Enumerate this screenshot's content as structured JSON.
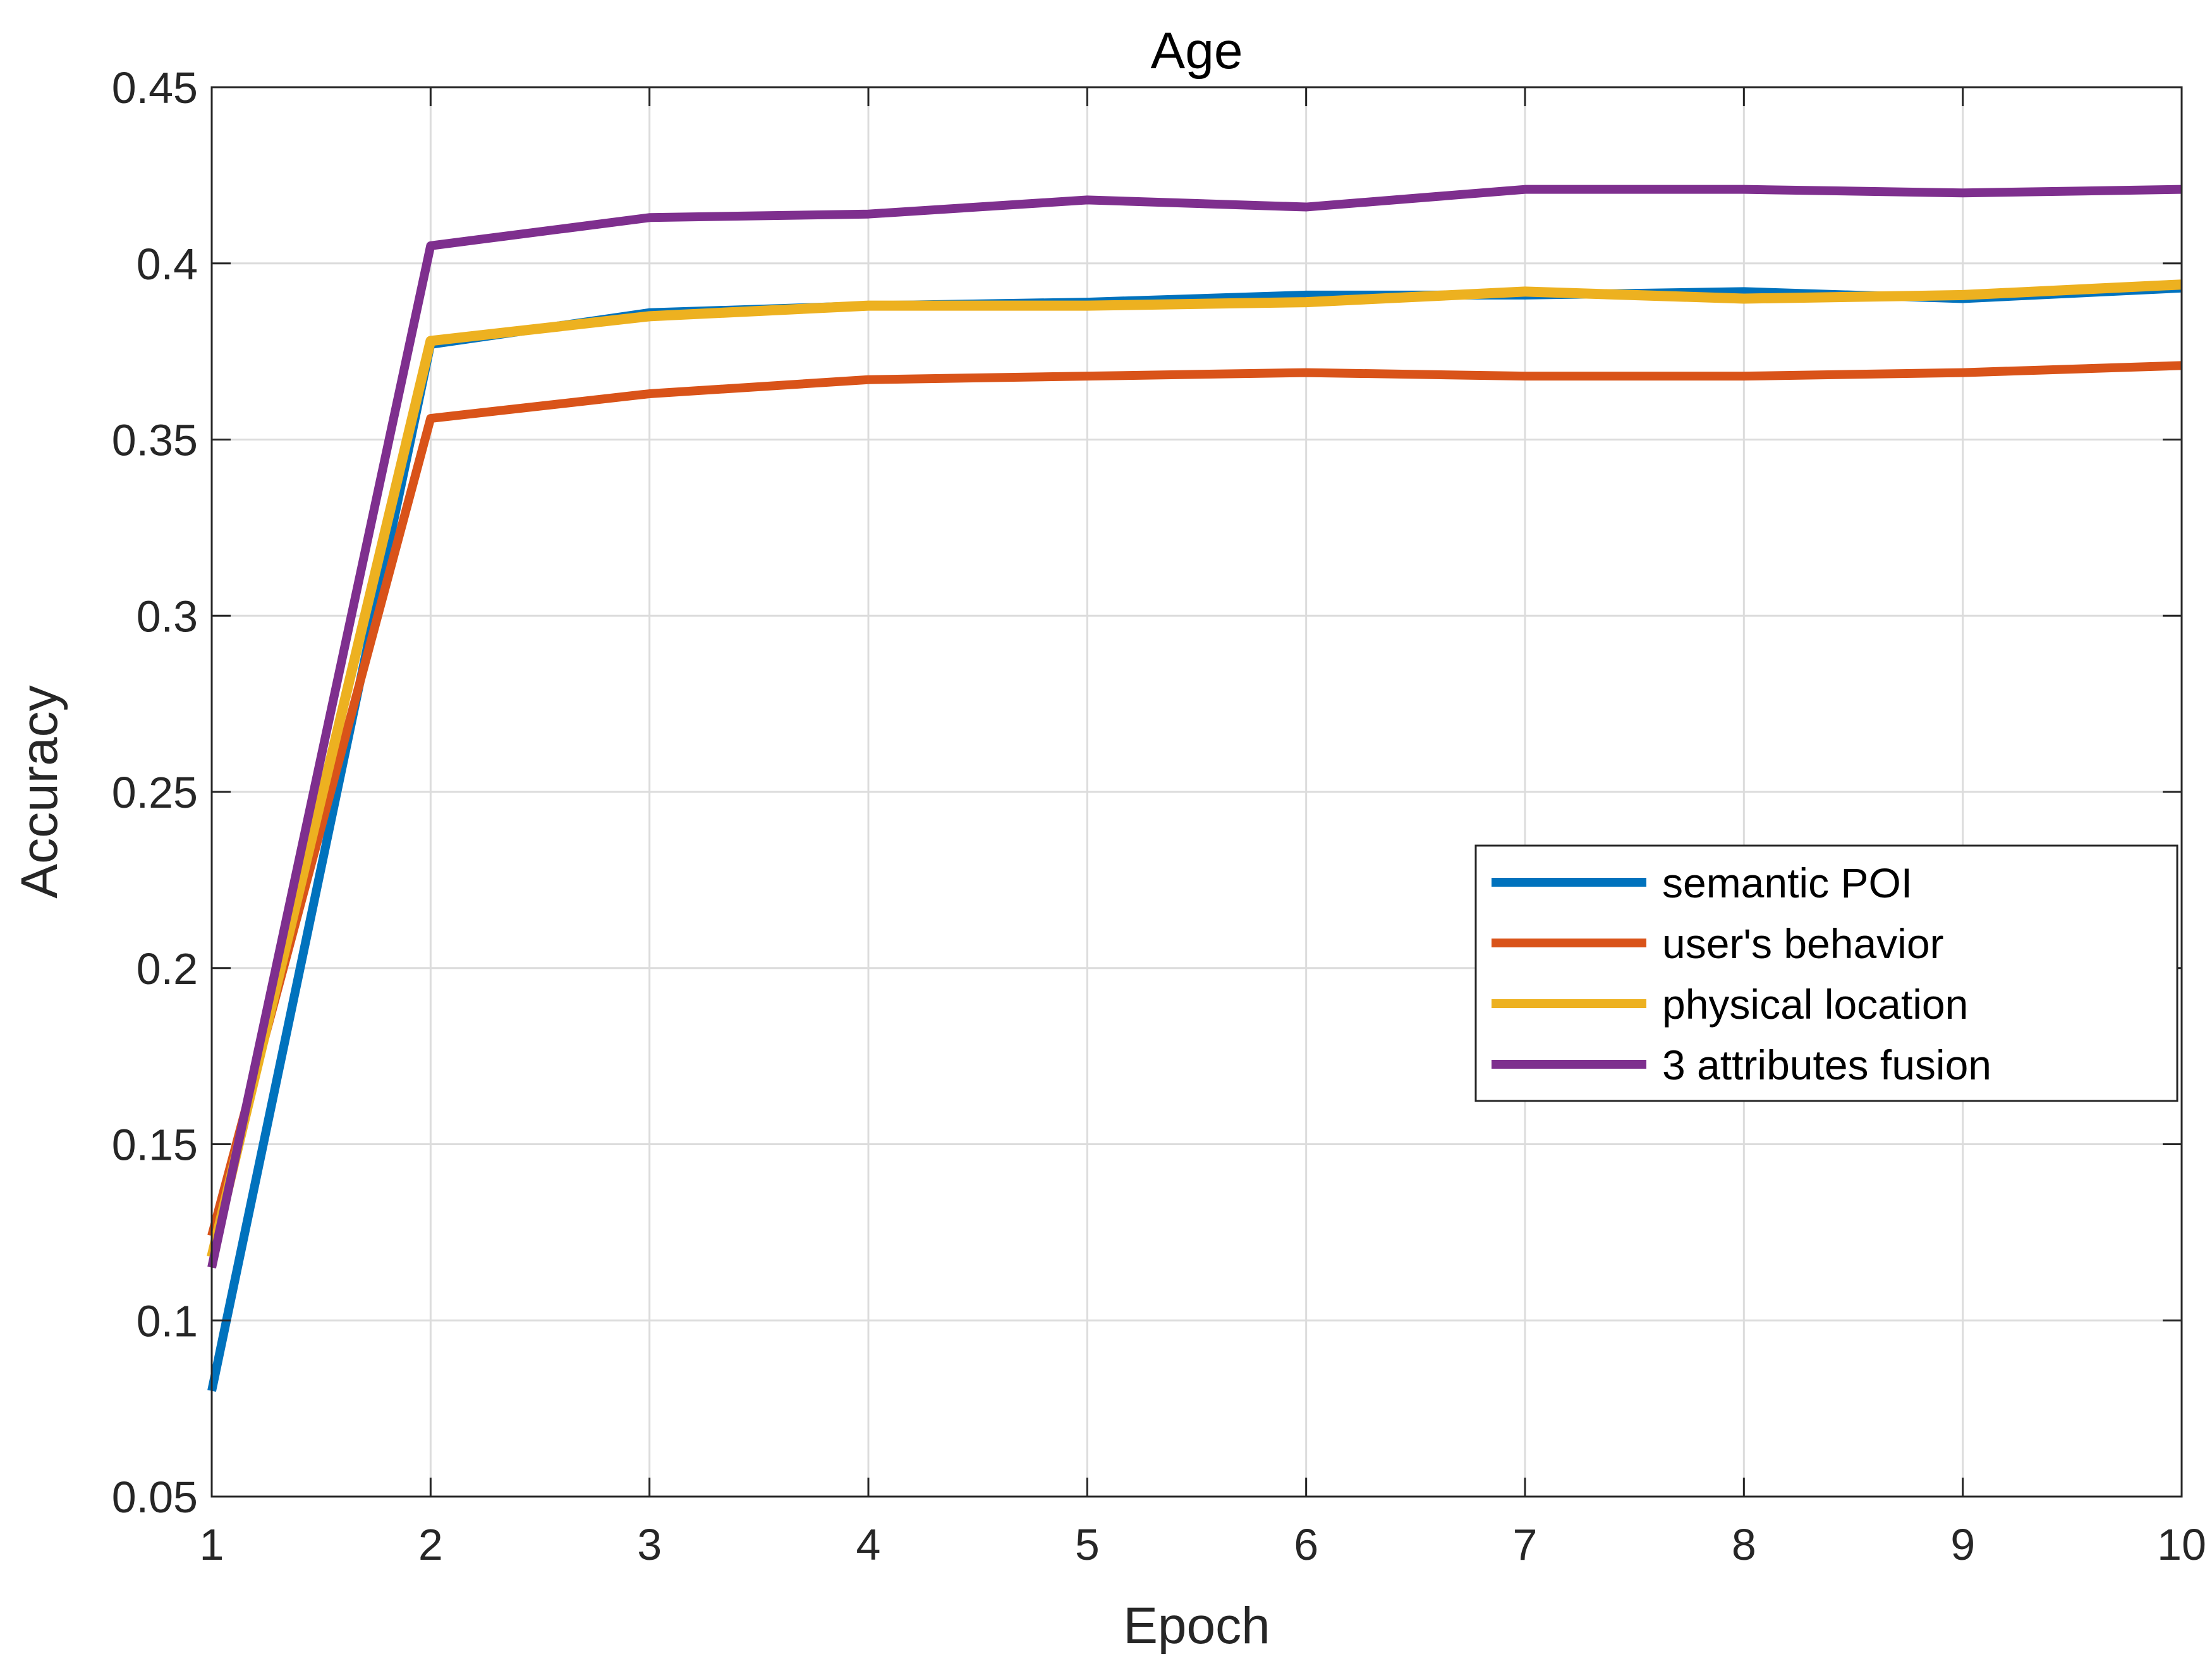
{
  "chart_data": {
    "type": "line",
    "title": "Age",
    "xlabel": "Epoch",
    "ylabel": "Accuracy",
    "xlim": [
      1,
      10
    ],
    "ylim": [
      0.05,
      0.45
    ],
    "xticks": [
      1,
      2,
      3,
      4,
      5,
      6,
      7,
      8,
      9,
      10
    ],
    "xtick_labels": [
      "1",
      "2",
      "3",
      "4",
      "5",
      "6",
      "7",
      "8",
      "9",
      "10"
    ],
    "yticks": [
      0.05,
      0.1,
      0.15,
      0.2,
      0.25,
      0.3,
      0.35,
      0.4,
      0.45
    ],
    "ytick_labels": [
      "0.05",
      "0.1",
      "0.15",
      "0.2",
      "0.25",
      "0.3",
      "0.35",
      "0.4",
      "0.45"
    ],
    "grid": true,
    "legend_position": "right",
    "x": [
      1,
      2,
      3,
      4,
      5,
      6,
      7,
      8,
      9,
      10
    ],
    "series": [
      {
        "name": "semantic POI",
        "color": "#0072BD",
        "values": [
          0.08,
          0.377,
          0.386,
          0.388,
          0.389,
          0.391,
          0.391,
          0.392,
          0.39,
          0.393
        ]
      },
      {
        "name": "user's behavior",
        "color": "#D95319",
        "values": [
          0.124,
          0.356,
          0.363,
          0.367,
          0.368,
          0.369,
          0.368,
          0.368,
          0.369,
          0.371
        ]
      },
      {
        "name": "physical location",
        "color": "#EDB120",
        "values": [
          0.118,
          0.378,
          0.385,
          0.388,
          0.388,
          0.389,
          0.392,
          0.39,
          0.391,
          0.394
        ]
      },
      {
        "name": "3 attributes fusion",
        "color": "#7E2F8E",
        "values": [
          0.115,
          0.405,
          0.413,
          0.414,
          0.418,
          0.416,
          0.421,
          0.421,
          0.42,
          0.421
        ]
      }
    ]
  }
}
